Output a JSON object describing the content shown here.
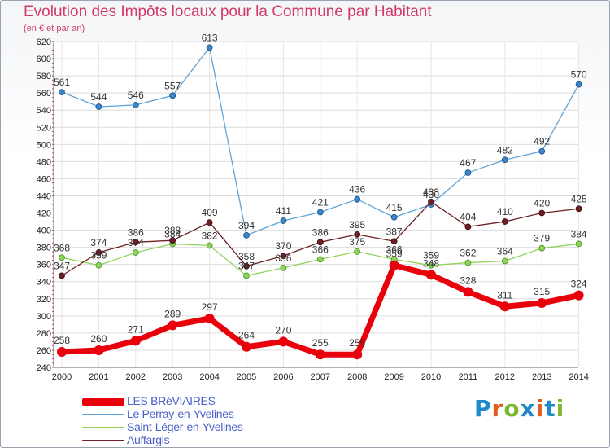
{
  "title": "Evolution des Impôts locaux pour la Commune par Habitant",
  "subtitle": "(en € et par an)",
  "logo": {
    "letters": [
      "P",
      "r",
      "o",
      "x",
      "i",
      "t",
      "i"
    ],
    "colors": [
      "#1e88c8",
      "#e25a1c",
      "#7cb82f",
      "#1e88c8",
      "#e25a1c",
      "#1e88c8",
      "#7cb82f"
    ]
  },
  "chart_data": {
    "type": "line",
    "x": [
      "2000",
      "2001",
      "2002",
      "2003",
      "2004",
      "2005",
      "2006",
      "2007",
      "2008",
      "2009",
      "2010",
      "2011",
      "2012",
      "2013",
      "2014"
    ],
    "ylim": [
      240,
      620
    ],
    "yticks": [
      240,
      260,
      280,
      300,
      320,
      340,
      360,
      380,
      400,
      420,
      440,
      460,
      480,
      500,
      520,
      540,
      560,
      580,
      600,
      620
    ],
    "grid": true,
    "legend_position": "bottom-left",
    "series": [
      {
        "name": "LES BRéVIAIRES",
        "color": "#e8000b",
        "values": [
          258,
          260,
          271,
          289,
          297,
          264,
          270,
          255,
          255,
          359,
          348,
          328,
          311,
          315,
          324
        ]
      },
      {
        "name": "Le Perray-en-Yvelines",
        "color": "#5ea4d8",
        "values": [
          561,
          544,
          546,
          557,
          613,
          394,
          411,
          421,
          436,
          415,
          430,
          467,
          482,
          492,
          570
        ]
      },
      {
        "name": "Saint-Léger-en-Yvelines",
        "color": "#8ed45a",
        "values": [
          368,
          359,
          374,
          384,
          382,
          347,
          356,
          366,
          375,
          366,
          359,
          362,
          364,
          379,
          384
        ]
      },
      {
        "name": "Auffargis",
        "color": "#6e1f24",
        "values": [
          347,
          374,
          386,
          388,
          409,
          358,
          370,
          386,
          395,
          387,
          433,
          404,
          410,
          420,
          425
        ]
      }
    ]
  }
}
